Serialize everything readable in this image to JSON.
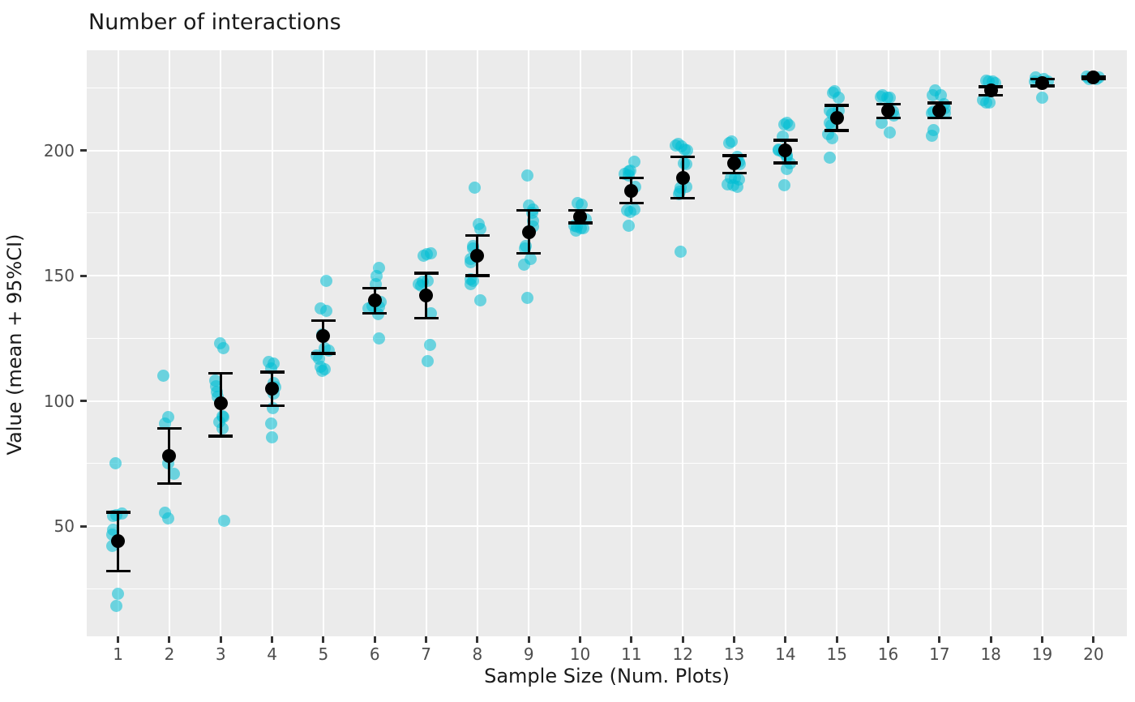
{
  "chart_data": {
    "type": "scatter",
    "title": "Number of interactions",
    "xlabel": "Sample Size (Num. Plots)",
    "ylabel": "Value (mean + 95%CI)",
    "legend": "none",
    "background": "#EBEBEB",
    "grid": "white major+minor horizontal, white major vertical",
    "point_color": "#00BED4",
    "mean_color": "#000000",
    "xlim": [
      0.39,
      20.65
    ],
    "ylim": [
      6,
      240
    ],
    "x_ticks": [
      1,
      2,
      3,
      4,
      5,
      6,
      7,
      8,
      9,
      10,
      11,
      12,
      13,
      14,
      15,
      16,
      17,
      18,
      19,
      20
    ],
    "y_ticks": [
      50,
      100,
      150,
      200
    ],
    "y_minor": [
      25,
      75,
      125,
      175,
      225
    ],
    "groups": [
      {
        "x": 1,
        "mean": 44,
        "ci_low": 32,
        "ci_high": 55.5,
        "points": [
          [
            -0.05,
            75
          ],
          [
            0.08,
            55
          ],
          [
            -0.03,
            54.5
          ],
          [
            -0.09,
            54
          ],
          [
            -0.09,
            48.5
          ],
          [
            -0.11,
            46.5
          ],
          [
            -0.02,
            44
          ],
          [
            -0.11,
            42
          ],
          [
            0,
            23
          ],
          [
            -0.03,
            18
          ]
        ]
      },
      {
        "x": 2,
        "mean": 78,
        "ci_low": 67,
        "ci_high": 89,
        "points": [
          [
            -0.11,
            110
          ],
          [
            -0.02,
            93.5
          ],
          [
            -0.08,
            91
          ],
          [
            0,
            78
          ],
          [
            -0.03,
            75
          ],
          [
            0.08,
            71
          ],
          [
            -0.09,
            55.5
          ],
          [
            -0.03,
            53
          ]
        ]
      },
      {
        "x": 3,
        "mean": 99,
        "ci_low": 86,
        "ci_high": 111,
        "points": [
          [
            -0.02,
            123
          ],
          [
            0.05,
            121
          ],
          [
            -0.11,
            108
          ],
          [
            -0.09,
            106
          ],
          [
            -0.08,
            103.5
          ],
          [
            -0.06,
            101.5
          ],
          [
            0.03,
            94
          ],
          [
            0.05,
            93.5
          ],
          [
            -0.03,
            91.5
          ],
          [
            0.03,
            89
          ],
          [
            0.06,
            52
          ]
        ]
      },
      {
        "x": 4,
        "mean": 105,
        "ci_low": 98,
        "ci_high": 111.5,
        "points": [
          [
            -0.06,
            115.5
          ],
          [
            0.03,
            115
          ],
          [
            -0.02,
            113
          ],
          [
            0.03,
            107
          ],
          [
            0.06,
            105.5
          ],
          [
            0.03,
            103
          ],
          [
            0.02,
            97
          ],
          [
            -0.02,
            91
          ],
          [
            0,
            85.5
          ]
        ]
      },
      {
        "x": 5,
        "mean": 126,
        "ci_low": 119,
        "ci_high": 132,
        "points": [
          [
            0.05,
            148
          ],
          [
            -0.05,
            137
          ],
          [
            0.06,
            136
          ],
          [
            -0.02,
            126.5
          ],
          [
            0.03,
            121
          ],
          [
            0.11,
            120
          ],
          [
            -0.13,
            118
          ],
          [
            -0.09,
            117
          ],
          [
            -0.05,
            113.5
          ],
          [
            0.03,
            112.5
          ],
          [
            -0.02,
            112
          ]
        ]
      },
      {
        "x": 6,
        "mean": 140,
        "ci_low": 135,
        "ci_high": 145,
        "points": [
          [
            0.09,
            153
          ],
          [
            0.03,
            150
          ],
          [
            0.02,
            146.5
          ],
          [
            0.11,
            139.5
          ],
          [
            -0.05,
            138
          ],
          [
            0.09,
            137.5
          ],
          [
            -0.13,
            137
          ],
          [
            0.06,
            134.5
          ],
          [
            0.08,
            125
          ]
        ]
      },
      {
        "x": 7,
        "mean": 142,
        "ci_low": 133,
        "ci_high": 151,
        "points": [
          [
            0.09,
            159
          ],
          [
            0.02,
            158.5
          ],
          [
            -0.05,
            158
          ],
          [
            0.03,
            148
          ],
          [
            -0.06,
            147.5
          ],
          [
            -0.14,
            146.5
          ],
          [
            -0.09,
            146
          ],
          [
            0.09,
            135
          ],
          [
            0.08,
            122.5
          ],
          [
            0.03,
            116
          ]
        ]
      },
      {
        "x": 8,
        "mean": 158,
        "ci_low": 150,
        "ci_high": 166,
        "points": [
          [
            -0.05,
            185
          ],
          [
            0.03,
            170.5
          ],
          [
            0.05,
            168.5
          ],
          [
            -0.09,
            162
          ],
          [
            -0.08,
            161
          ],
          [
            -0.13,
            156.5
          ],
          [
            -0.14,
            155.5
          ],
          [
            -0.14,
            148.5
          ],
          [
            -0.08,
            148
          ],
          [
            -0.13,
            146.5
          ],
          [
            0.06,
            140
          ]
        ]
      },
      {
        "x": 9,
        "mean": 167.5,
        "ci_low": 159,
        "ci_high": 176,
        "points": [
          [
            -0.03,
            190
          ],
          [
            0,
            178
          ],
          [
            0.09,
            176.5
          ],
          [
            0.06,
            175
          ],
          [
            0.09,
            172
          ],
          [
            0.08,
            169.5
          ],
          [
            -0.06,
            162
          ],
          [
            -0.08,
            161
          ],
          [
            0.03,
            156.5
          ],
          [
            -0.09,
            154.5
          ],
          [
            -0.03,
            141
          ]
        ]
      },
      {
        "x": 10,
        "mean": 173.5,
        "ci_low": 171,
        "ci_high": 176,
        "points": [
          [
            -0.05,
            179
          ],
          [
            0.03,
            178.5
          ],
          [
            0.11,
            172.5
          ],
          [
            -0.11,
            170
          ],
          [
            -0.06,
            169.5
          ],
          [
            0.02,
            169
          ],
          [
            0.06,
            169
          ],
          [
            -0.08,
            168
          ]
        ]
      },
      {
        "x": 11,
        "mean": 184,
        "ci_low": 179,
        "ci_high": 189,
        "points": [
          [
            0.05,
            195.5
          ],
          [
            -0.02,
            192
          ],
          [
            -0.06,
            191.5
          ],
          [
            -0.13,
            190.5
          ],
          [
            -0.05,
            190
          ],
          [
            0.08,
            185.5
          ],
          [
            0.05,
            176.5
          ],
          [
            -0.09,
            176
          ],
          [
            -0.02,
            175.5
          ],
          [
            -0.06,
            170
          ]
        ]
      },
      {
        "x": 12,
        "mean": 189,
        "ci_low": 181,
        "ci_high": 197.5,
        "points": [
          [
            -0.09,
            202.5
          ],
          [
            -0.14,
            202
          ],
          [
            -0.02,
            201.5
          ],
          [
            0.03,
            200.5
          ],
          [
            0.09,
            200
          ],
          [
            0.02,
            195
          ],
          [
            0.06,
            194.5
          ],
          [
            0.06,
            185.5
          ],
          [
            -0.05,
            185
          ],
          [
            -0.06,
            183.5
          ],
          [
            -0.08,
            182.5
          ],
          [
            -0.05,
            159.5
          ]
        ]
      },
      {
        "x": 13,
        "mean": 195,
        "ci_low": 191,
        "ci_high": 198,
        "points": [
          [
            -0.05,
            203.5
          ],
          [
            -0.09,
            203
          ],
          [
            0.06,
            197.5
          ],
          [
            0.09,
            195.5
          ],
          [
            0.11,
            194.5
          ],
          [
            -0.06,
            189
          ],
          [
            0.02,
            189
          ],
          [
            0.09,
            188.5
          ],
          [
            -0.13,
            186.5
          ],
          [
            -0.02,
            186
          ],
          [
            0.06,
            185.5
          ]
        ]
      },
      {
        "x": 14,
        "mean": 200,
        "ci_low": 195,
        "ci_high": 204,
        "points": [
          [
            0.03,
            211
          ],
          [
            -0.02,
            210.5
          ],
          [
            0.08,
            210
          ],
          [
            -0.06,
            205.5
          ],
          [
            -0.14,
            200.5
          ],
          [
            -0.13,
            200
          ],
          [
            -0.06,
            199.5
          ],
          [
            0.02,
            198
          ],
          [
            0.03,
            197.5
          ],
          [
            0.09,
            195
          ],
          [
            0.02,
            192.5
          ],
          [
            -0.02,
            186
          ]
        ]
      },
      {
        "x": 15,
        "mean": 213,
        "ci_low": 208,
        "ci_high": 218,
        "points": [
          [
            -0.05,
            223.5
          ],
          [
            -0.08,
            223
          ],
          [
            0.03,
            221
          ],
          [
            -0.13,
            216
          ],
          [
            0.03,
            216
          ],
          [
            -0.09,
            214.5
          ],
          [
            -0.14,
            211
          ],
          [
            -0.11,
            210
          ],
          [
            -0.17,
            206.5
          ],
          [
            -0.09,
            205
          ],
          [
            -0.13,
            197
          ]
        ]
      },
      {
        "x": 16,
        "mean": 216,
        "ci_low": 213,
        "ci_high": 218.5,
        "points": [
          [
            -0.11,
            222
          ],
          [
            -0.14,
            221.5
          ],
          [
            -0.02,
            221
          ],
          [
            0.03,
            221
          ],
          [
            0.09,
            215.5
          ],
          [
            0.11,
            214
          ],
          [
            -0.13,
            211
          ],
          [
            0.03,
            207
          ]
        ]
      },
      {
        "x": 17,
        "mean": 216,
        "ci_low": 213,
        "ci_high": 219,
        "points": [
          [
            -0.09,
            224
          ],
          [
            -0.13,
            222
          ],
          [
            0.03,
            222
          ],
          [
            0.09,
            218.5
          ],
          [
            0.11,
            217
          ],
          [
            -0.11,
            215.5
          ],
          [
            -0.14,
            215
          ],
          [
            0.11,
            215
          ],
          [
            -0.11,
            208
          ],
          [
            -0.14,
            206
          ]
        ]
      },
      {
        "x": 18,
        "mean": 224,
        "ci_low": 222,
        "ci_high": 225.5,
        "points": [
          [
            -0.09,
            228
          ],
          [
            -0.05,
            227.5
          ],
          [
            0.03,
            227.5
          ],
          [
            0.09,
            227
          ],
          [
            -0.16,
            220
          ],
          [
            -0.09,
            219
          ],
          [
            -0.02,
            219
          ]
        ]
      },
      {
        "x": 19,
        "mean": 227,
        "ci_low": 225.8,
        "ci_high": 228.5,
        "points": [
          [
            -0.13,
            229
          ],
          [
            0.03,
            228.5
          ],
          [
            0.11,
            227.5
          ],
          [
            -0.14,
            227.5
          ],
          [
            0,
            221
          ]
        ]
      },
      {
        "x": 20,
        "mean": 229,
        "ci_low": 228.6,
        "ci_high": 229.4,
        "points": [
          [
            -0.13,
            229.5
          ],
          [
            0.11,
            229
          ],
          [
            -0.05,
            229
          ],
          [
            0.05,
            228.5
          ],
          [
            -0.08,
            228.5
          ]
        ]
      }
    ]
  }
}
